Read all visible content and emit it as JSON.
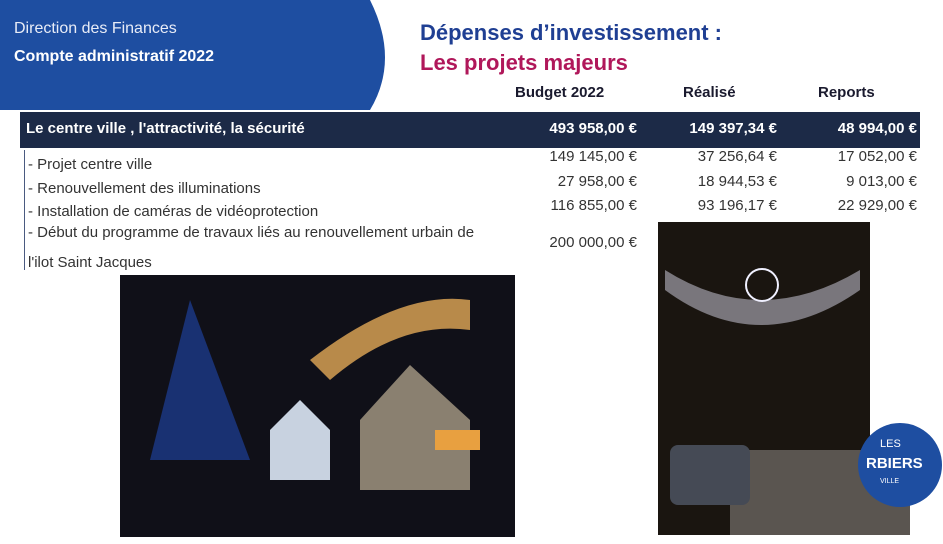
{
  "header": {
    "department": "Direction des Finances",
    "report": "Compte administratif 2022",
    "title": "Dépenses d’investissement :",
    "subtitle": "Les projets majeurs"
  },
  "table": {
    "columns": [
      "Budget 2022",
      "Réalisé",
      "Reports"
    ],
    "section": [
      "Le centre ville , l'attractivité, la sécurité",
      "493 958,00 €",
      "149 397,34 €",
      "48 994,00 €"
    ],
    "rows": [
      [
        "- Projet centre ville",
        "149 145,00 €",
        "37 256,64 €",
        "17 052,00 €"
      ],
      [
        "- Renouvellement des illuminations",
        "27 958,00 €",
        "18 944,53 €",
        "9 013,00 €"
      ],
      [
        "- Installation de caméras de vidéoprotection",
        "116 855,00 €",
        "93 196,17 €",
        "22 929,00 €"
      ],
      [
        "- Début du programme de travaux liés au renouvellement urbain de l'ilot Saint Jacques",
        "200 000,00 €"
      ]
    ]
  },
  "logo": [
    "LES",
    "RBIERS",
    "VILLE"
  ]
}
